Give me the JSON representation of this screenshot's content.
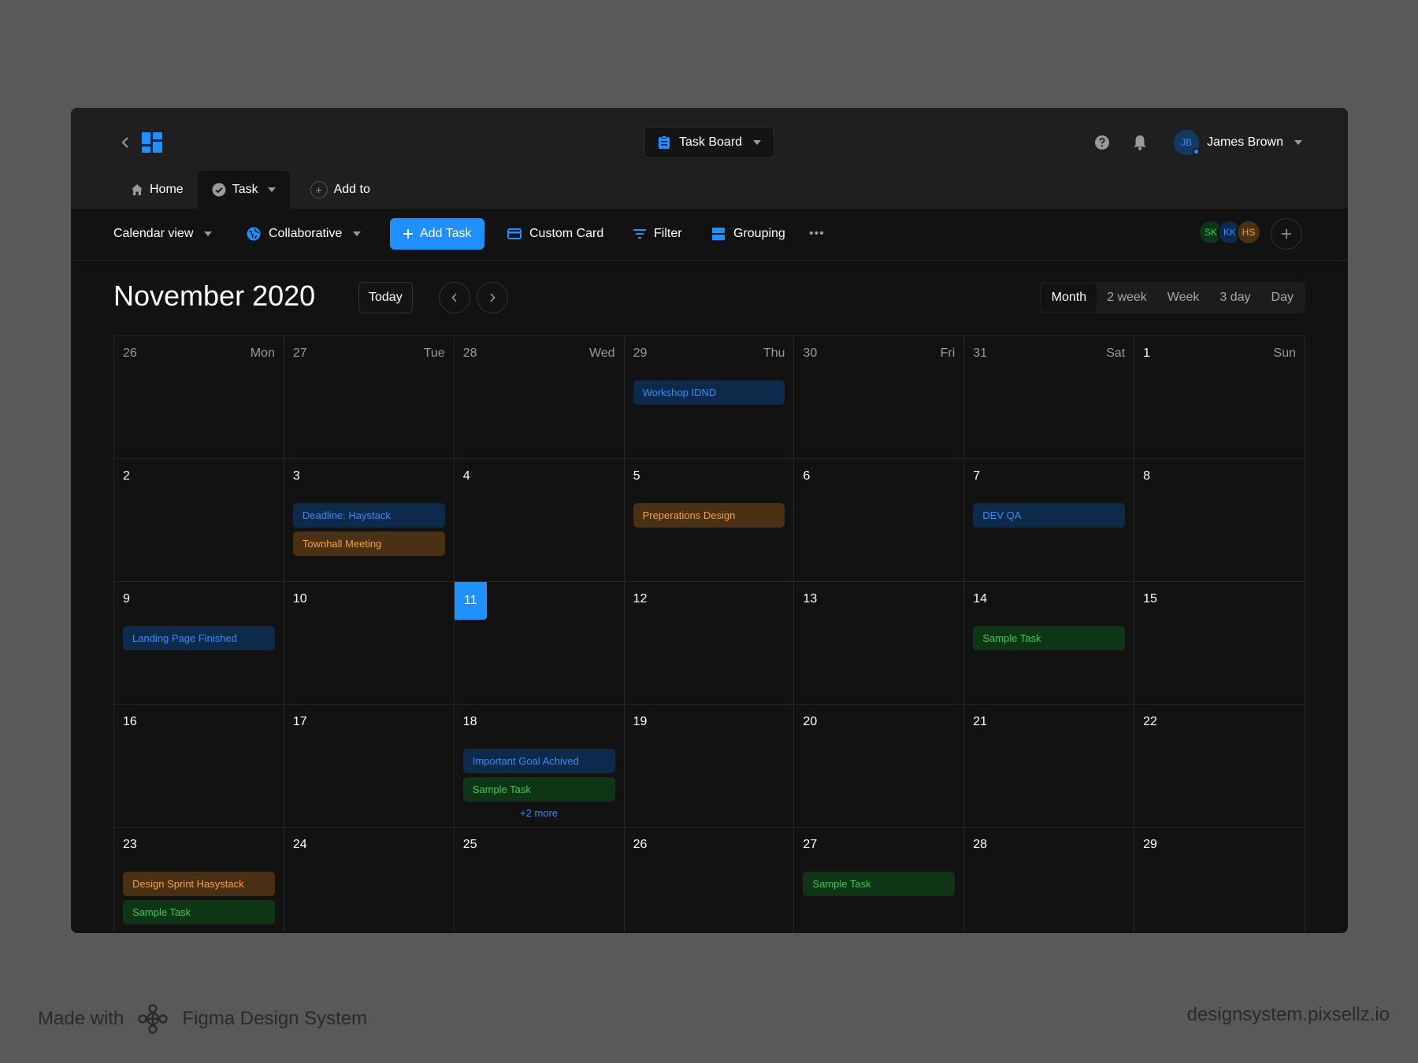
{
  "topbar": {
    "board_label": "Task Board",
    "user_initials": "JB",
    "user_name": "James Brown"
  },
  "tabs": [
    {
      "label": "Home"
    },
    {
      "label": "Task"
    },
    {
      "label": "Add to"
    }
  ],
  "toolbar": {
    "view_label": "Calendar view",
    "mode_label": "Collaborative",
    "add_task_label": "Add Task",
    "custom_card_label": "Custom Card",
    "filter_label": "Filter",
    "grouping_label": "Grouping",
    "more_label": "•••"
  },
  "members": [
    {
      "initials": "SK",
      "bg": "#0f3517",
      "fg": "#40c65a"
    },
    {
      "initials": "KK",
      "bg": "#0d2a4b",
      "fg": "#3d8cf0"
    },
    {
      "initials": "HS",
      "bg": "#4a3113",
      "fg": "#f0a04a"
    }
  ],
  "calendar": {
    "title": "November 2020",
    "today_label": "Today",
    "views": [
      "Month",
      "2 week",
      "Week",
      "3 day",
      "Day"
    ],
    "active_view": "Month",
    "weekdays": [
      "Mon",
      "Tue",
      "Wed",
      "Thu",
      "Fri",
      "Sat",
      "Sun"
    ],
    "days": [
      {
        "n": "26",
        "muted": true,
        "events": []
      },
      {
        "n": "27",
        "muted": true,
        "events": []
      },
      {
        "n": "28",
        "muted": true,
        "events": []
      },
      {
        "n": "29",
        "muted": true,
        "events": [
          {
            "t": "Workshop IDND",
            "c": "blue"
          }
        ]
      },
      {
        "n": "30",
        "muted": true,
        "events": []
      },
      {
        "n": "31",
        "muted": true,
        "events": []
      },
      {
        "n": "1",
        "events": []
      },
      {
        "n": "2",
        "events": []
      },
      {
        "n": "3",
        "events": [
          {
            "t": "Deadline: Haystack",
            "c": "blue"
          },
          {
            "t": "Townhall Meeting",
            "c": "orange"
          }
        ]
      },
      {
        "n": "4",
        "events": []
      },
      {
        "n": "5",
        "events": [
          {
            "t": "Preperations Design",
            "c": "orange"
          }
        ]
      },
      {
        "n": "6",
        "events": []
      },
      {
        "n": "7",
        "events": [
          {
            "t": "DEV QA",
            "c": "blue"
          }
        ]
      },
      {
        "n": "8",
        "events": []
      },
      {
        "n": "9",
        "events": [
          {
            "t": "Landing Page Finished",
            "c": "blue"
          }
        ]
      },
      {
        "n": "10",
        "events": []
      },
      {
        "n": "11",
        "today": true,
        "events": []
      },
      {
        "n": "12",
        "events": []
      },
      {
        "n": "13",
        "events": []
      },
      {
        "n": "14",
        "events": [
          {
            "t": "Sample Task",
            "c": "green"
          }
        ]
      },
      {
        "n": "15",
        "events": []
      },
      {
        "n": "16",
        "events": []
      },
      {
        "n": "17",
        "events": []
      },
      {
        "n": "18",
        "events": [
          {
            "t": "Important Goal Achived",
            "c": "blue"
          },
          {
            "t": "Sample Task",
            "c": "green"
          }
        ],
        "more": "+2 more"
      },
      {
        "n": "19",
        "events": []
      },
      {
        "n": "20",
        "events": []
      },
      {
        "n": "21",
        "events": []
      },
      {
        "n": "22",
        "events": []
      },
      {
        "n": "23",
        "events": [
          {
            "t": "Design Sprint Hasystack",
            "c": "orange"
          },
          {
            "t": "Sample Task",
            "c": "green"
          }
        ]
      },
      {
        "n": "24",
        "events": []
      },
      {
        "n": "25",
        "events": []
      },
      {
        "n": "26",
        "events": []
      },
      {
        "n": "27",
        "events": [
          {
            "t": "Sample Task",
            "c": "green"
          }
        ]
      },
      {
        "n": "28",
        "events": []
      },
      {
        "n": "29",
        "events": []
      }
    ]
  },
  "footer": {
    "made_with": "Made with",
    "system_name": "Figma Design System",
    "url": "designsystem.pixsellz.io"
  },
  "colors": {
    "accent": "#1e90ff",
    "blue_event_bg": "#0d2a4b",
    "orange_event_bg": "#4a3113",
    "green_event_bg": "#0f3517"
  }
}
